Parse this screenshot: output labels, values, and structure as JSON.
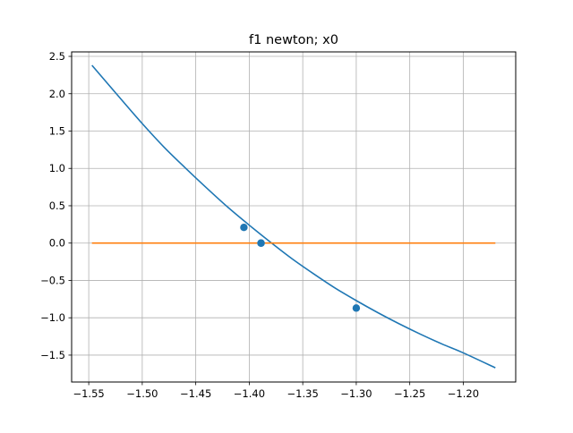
{
  "chart_data": {
    "type": "line",
    "title": "f1 newton; x0",
    "xlabel": "",
    "ylabel": "",
    "xlim": [
      -1.566,
      -1.151
    ],
    "ylim": [
      -1.86,
      2.56
    ],
    "grid": true,
    "xticks": [
      -1.55,
      -1.5,
      -1.45,
      -1.4,
      -1.35,
      -1.3,
      -1.25,
      -1.2
    ],
    "xtick_labels": [
      "−1.55",
      "−1.50",
      "−1.45",
      "−1.40",
      "−1.35",
      "−1.30",
      "−1.25",
      "−1.20"
    ],
    "yticks": [
      -1.5,
      -1.0,
      -0.5,
      0.0,
      0.5,
      1.0,
      1.5,
      2.0,
      2.5
    ],
    "ytick_labels": [
      "−1.5",
      "−1.0",
      "−0.5",
      "0.0",
      "0.5",
      "1.0",
      "1.5",
      "2.0",
      "2.5"
    ],
    "series": [
      {
        "color": "#1f77b4",
        "kind": "line",
        "x": [
          -1.547,
          -1.52,
          -1.5,
          -1.48,
          -1.46,
          -1.44,
          -1.42,
          -1.4,
          -1.38,
          -1.36,
          -1.34,
          -1.32,
          -1.3,
          -1.28,
          -1.26,
          -1.24,
          -1.22,
          -1.2,
          -1.17
        ],
        "y": [
          2.38,
          1.93,
          1.6,
          1.29,
          1.01,
          0.74,
          0.48,
          0.24,
          0.01,
          -0.21,
          -0.41,
          -0.6,
          -0.77,
          -0.93,
          -1.08,
          -1.22,
          -1.35,
          -1.47,
          -1.67
        ]
      },
      {
        "color": "#ff7f0e",
        "kind": "line",
        "x": [
          -1.547,
          -1.17
        ],
        "y": [
          0.0,
          0.0
        ]
      },
      {
        "color": "#1f77b4",
        "kind": "points",
        "x": [
          -1.3,
          -1.405,
          -1.389,
          -1.389
        ],
        "y": [
          -0.87,
          0.21,
          0.0,
          0.0
        ]
      }
    ]
  }
}
